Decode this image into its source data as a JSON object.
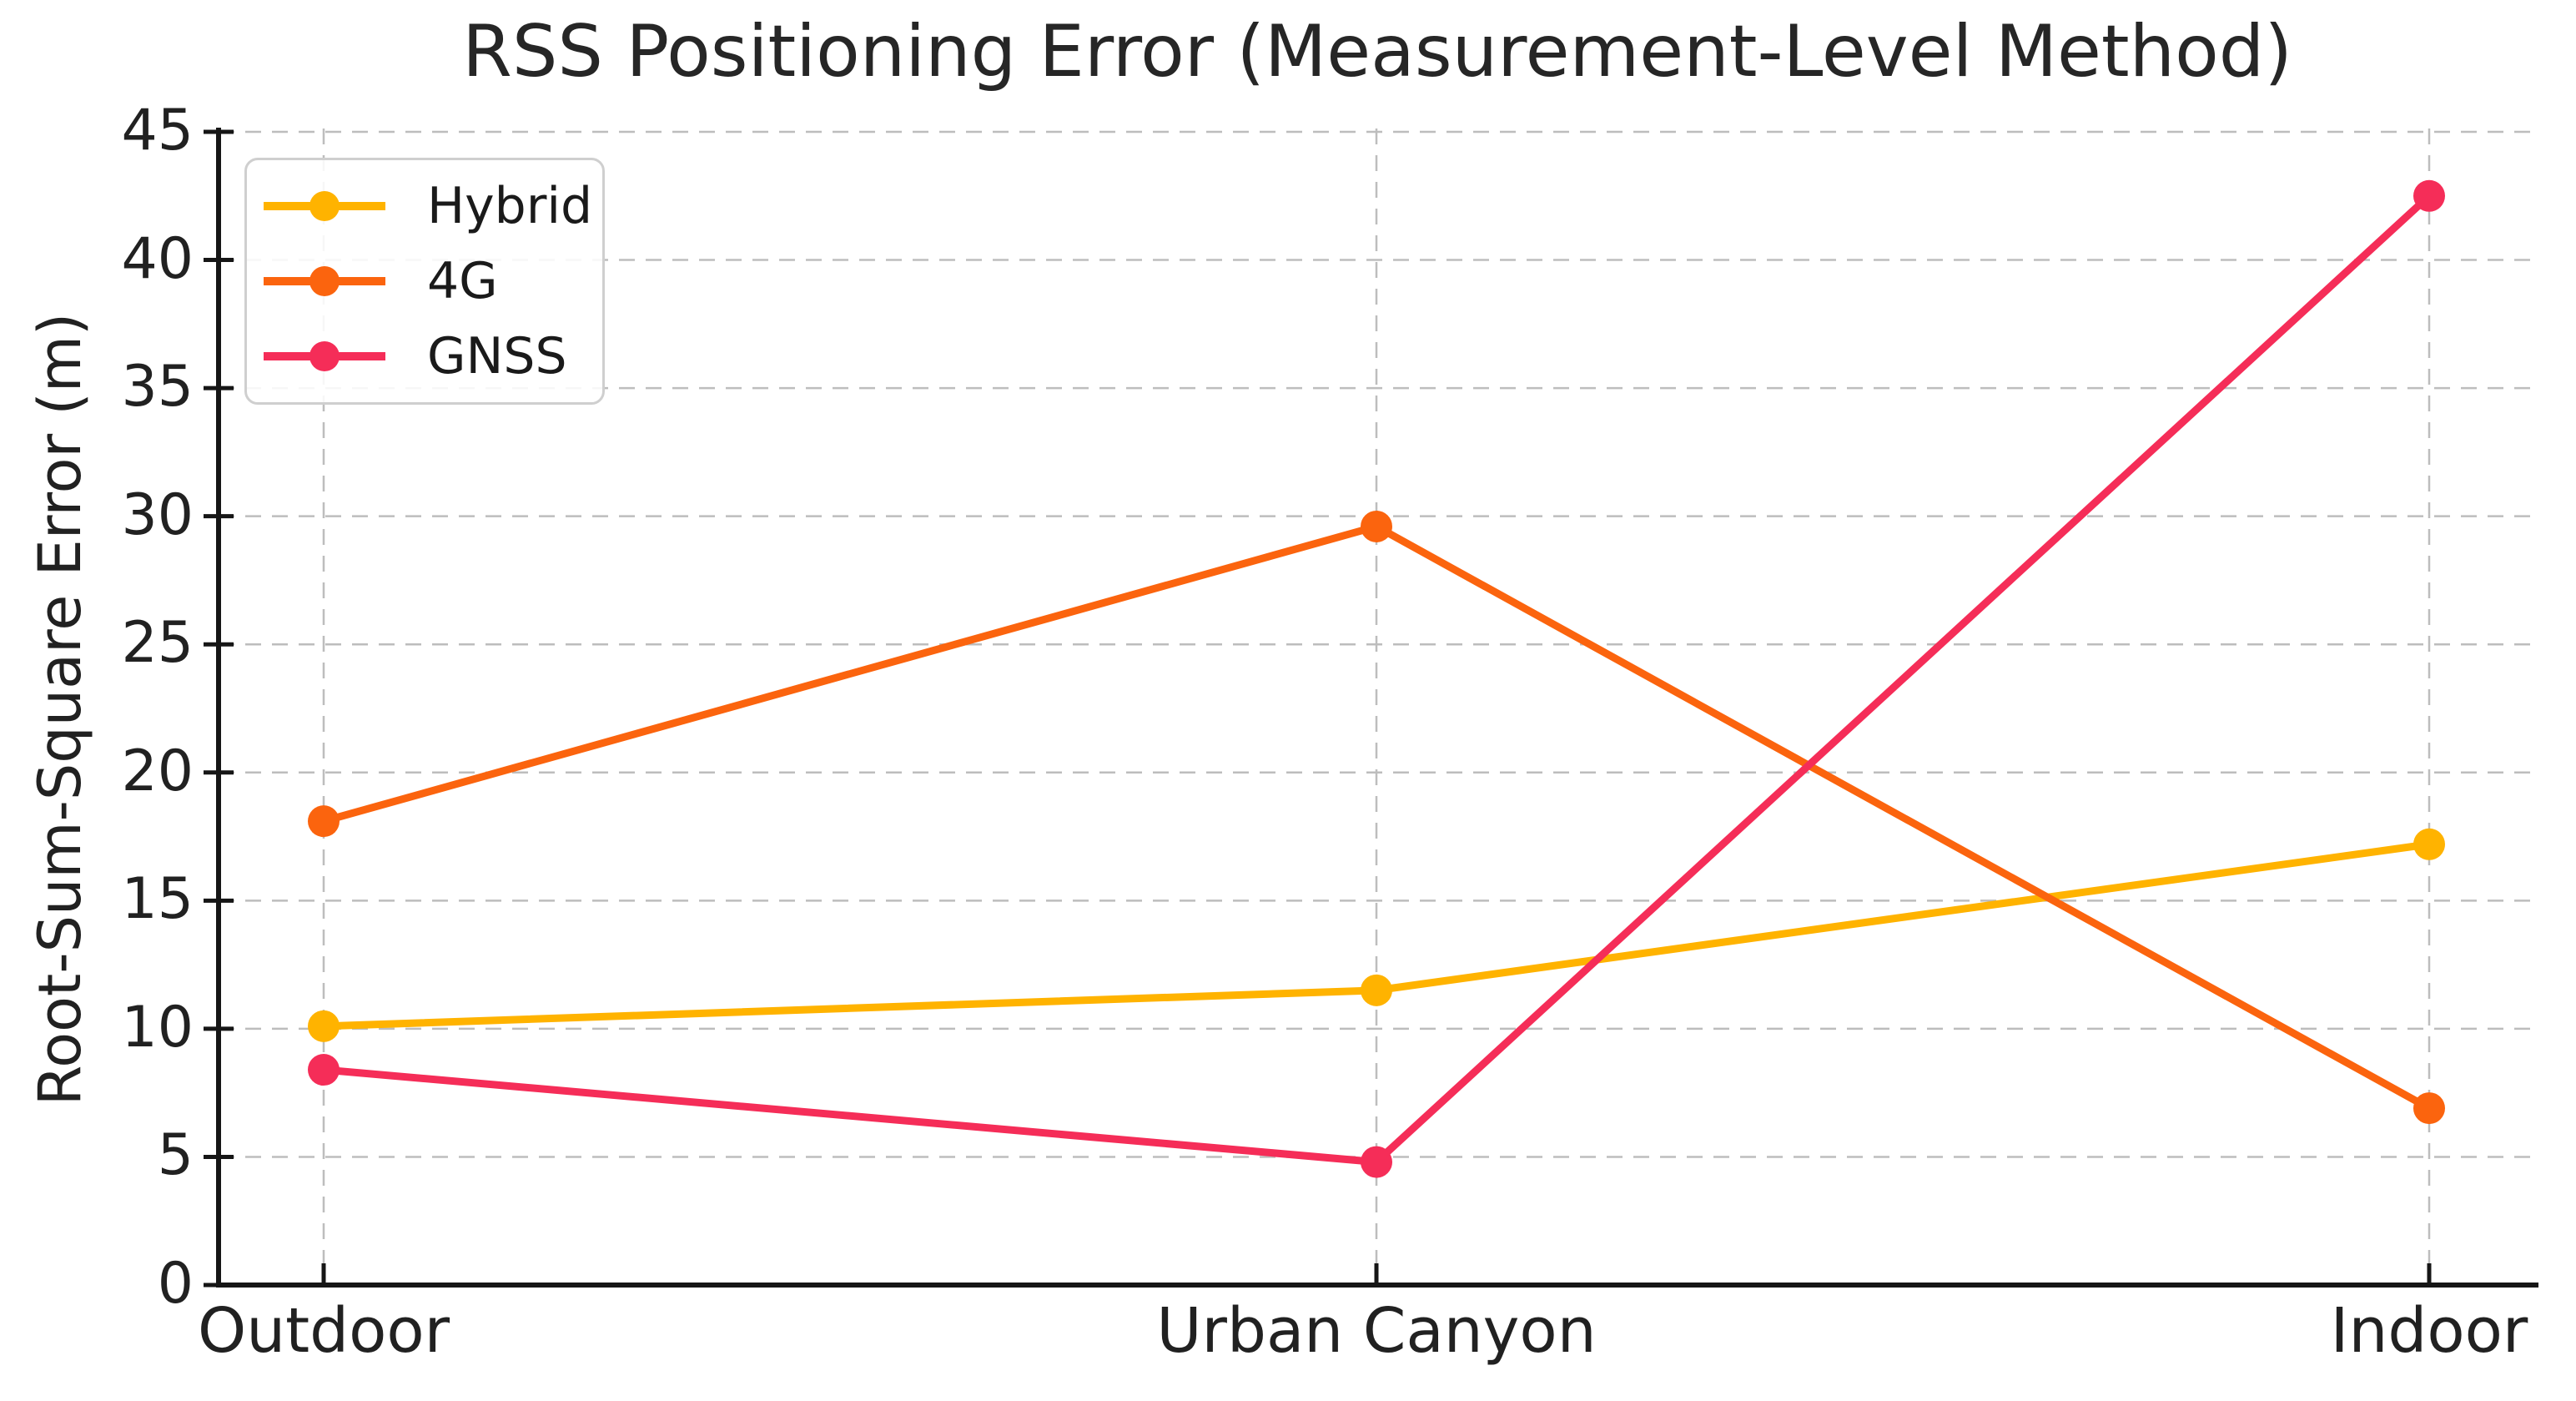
{
  "figure": {
    "background": "#ffffff",
    "text_color": "#212121",
    "grid_color": "#bdbdbd",
    "spine_color": "#161616",
    "legend_border_color": "#cfcfcf"
  },
  "chart_data": {
    "type": "line",
    "title": "RSS Positioning Error (Measurement-Level Method)",
    "ylabel": "Root-Sum-Square Error (m)",
    "xlabel": "",
    "categories": [
      "Outdoor",
      "Urban Canyon",
      "Indoor"
    ],
    "series": [
      {
        "name": "Hybrid",
        "color": "#FFB300",
        "values": [
          10.1,
          11.5,
          17.2
        ]
      },
      {
        "name": "4G",
        "color": "#FB640E",
        "values": [
          18.1,
          29.6,
          6.9
        ]
      },
      {
        "name": "GNSS",
        "color": "#F52D58",
        "values": [
          8.4,
          4.8,
          42.5
        ]
      }
    ],
    "ylim": [
      0,
      45
    ],
    "yticks": [
      0,
      5,
      10,
      15,
      20,
      25,
      30,
      35,
      40,
      45
    ],
    "grid": true,
    "grid_style": "dashed",
    "legend_position": "upper left",
    "marker": "circle"
  }
}
